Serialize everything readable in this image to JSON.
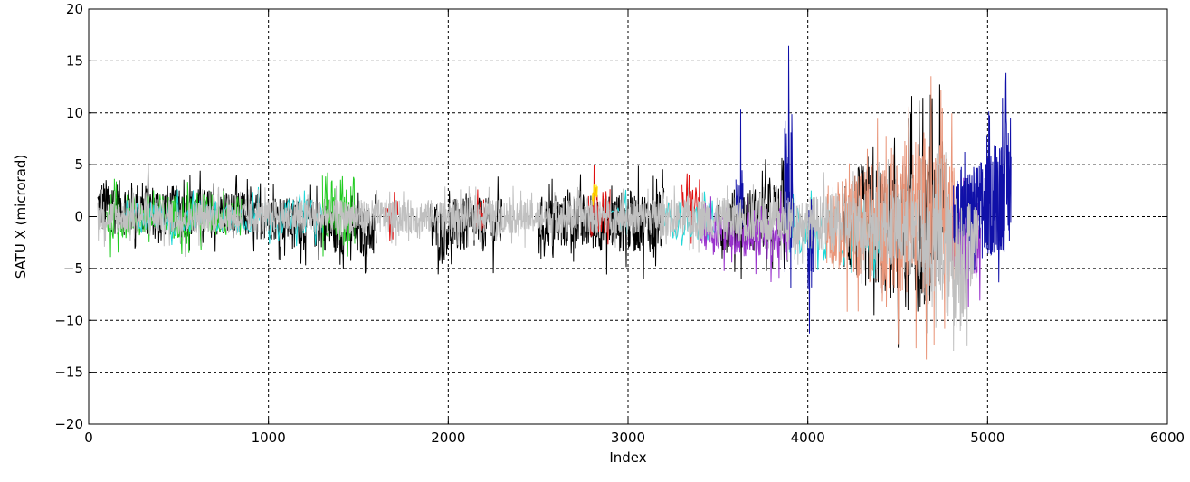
{
  "chart_data": {
    "type": "line",
    "title": "",
    "xlabel": "Index",
    "ylabel": "SATU X (microrad)",
    "xlim": [
      0,
      6000
    ],
    "ylim": [
      -20,
      20
    ],
    "x_ticks": [
      0,
      1000,
      2000,
      3000,
      4000,
      5000,
      6000
    ],
    "y_ticks": [
      -20,
      -15,
      -10,
      -5,
      0,
      5,
      10,
      15,
      20
    ],
    "x_tick_labels": [
      "0",
      "1000",
      "2000",
      "3000",
      "4000",
      "5000",
      "6000"
    ],
    "y_tick_labels": [
      "−20",
      "−15",
      "−10",
      "−5",
      "0",
      "5",
      "10",
      "15",
      "20"
    ],
    "grid": true,
    "legend": "none",
    "series": [
      {
        "color": "#000000",
        "segments": [
          [
            50,
            1450
          ],
          [
            1450,
            1600
          ],
          [
            1900,
            2300
          ],
          [
            2500,
            3200
          ],
          [
            3500,
            3900
          ],
          [
            4200,
            4780
          ]
        ],
        "envelope": [
          [
            50,
            -4,
            6
          ],
          [
            500,
            -4,
            5
          ],
          [
            1000,
            -4,
            4
          ],
          [
            1500,
            -6,
            3
          ],
          [
            2000,
            -6,
            4
          ],
          [
            2500,
            -5,
            4
          ],
          [
            3000,
            -6,
            5
          ],
          [
            3500,
            -6,
            5
          ],
          [
            3900,
            -6,
            6
          ],
          [
            4200,
            -10,
            9
          ],
          [
            4600,
            -16,
            12
          ],
          [
            4780,
            -12,
            13
          ]
        ],
        "points": 1400
      },
      {
        "color": "#22cc22",
        "segments": [
          [
            100,
            850
          ],
          [
            1300,
            1480
          ]
        ],
        "envelope": [
          [
            100,
            -4,
            4
          ],
          [
            500,
            -4,
            4
          ],
          [
            850,
            -4,
            5
          ],
          [
            1300,
            -5,
            7
          ],
          [
            1480,
            -6,
            7
          ]
        ],
        "points": 260
      },
      {
        "color": "#e01010",
        "segments": [
          [
            1650,
            1720
          ],
          [
            2150,
            2200
          ],
          [
            2780,
            2900
          ],
          [
            3300,
            3400
          ]
        ],
        "envelope": [
          [
            1650,
            -3,
            3
          ],
          [
            2200,
            -3,
            3
          ],
          [
            2800,
            -4,
            5
          ],
          [
            3400,
            -3,
            5
          ]
        ],
        "points": 120
      },
      {
        "color": "#ffd700",
        "segments": [
          [
            2800,
            2830
          ]
        ],
        "envelope": [
          [
            2800,
            0,
            4
          ],
          [
            2830,
            0,
            4
          ]
        ],
        "points": 10
      },
      {
        "color": "#20d8d8",
        "segments": [
          [
            200,
            1300
          ],
          [
            2900,
            3000
          ],
          [
            3200,
            3500
          ],
          [
            3900,
            4400
          ]
        ],
        "envelope": [
          [
            200,
            -3,
            3
          ],
          [
            1300,
            -3,
            3
          ],
          [
            2900,
            -3,
            3
          ],
          [
            3500,
            -4,
            3
          ],
          [
            4000,
            -6,
            3
          ],
          [
            4400,
            -8,
            3
          ]
        ],
        "points": 320
      },
      {
        "color": "#9932cc",
        "segments": [
          [
            3400,
            3900
          ],
          [
            4800,
            4960
          ]
        ],
        "envelope": [
          [
            3400,
            -5,
            3
          ],
          [
            3900,
            -7,
            3
          ],
          [
            4800,
            -9,
            5
          ],
          [
            4960,
            -9,
            5
          ]
        ],
        "points": 220
      },
      {
        "color": "#e9967a",
        "segments": [
          [
            4100,
            4820
          ]
        ],
        "envelope": [
          [
            4100,
            -8,
            6
          ],
          [
            4500,
            -13,
            12
          ],
          [
            4650,
            -14,
            15
          ],
          [
            4820,
            -12,
            10
          ]
        ],
        "points": 380
      },
      {
        "color": "#1010a8",
        "segments": [
          [
            3600,
            3640
          ],
          [
            3870,
            3920
          ],
          [
            4000,
            4030
          ],
          [
            4810,
            5130
          ]
        ],
        "envelope": [
          [
            3600,
            -5,
            10
          ],
          [
            3900,
            -7,
            17
          ],
          [
            4000,
            -13,
            6
          ],
          [
            4810,
            -5,
            6
          ],
          [
            5000,
            -8,
            10
          ],
          [
            5130,
            -9,
            16
          ]
        ],
        "points": 300
      },
      {
        "color": "#c0c0c0",
        "segments": [
          [
            50,
            4950
          ]
        ],
        "envelope": [
          [
            50,
            -3,
            3
          ],
          [
            1000,
            -3,
            3
          ],
          [
            2000,
            -3,
            3
          ],
          [
            3000,
            -3,
            3
          ],
          [
            4000,
            -5,
            4
          ],
          [
            4500,
            -8,
            6
          ],
          [
            4850,
            -17,
            8
          ],
          [
            4950,
            -5,
            3
          ]
        ],
        "points": 2600
      }
    ]
  }
}
